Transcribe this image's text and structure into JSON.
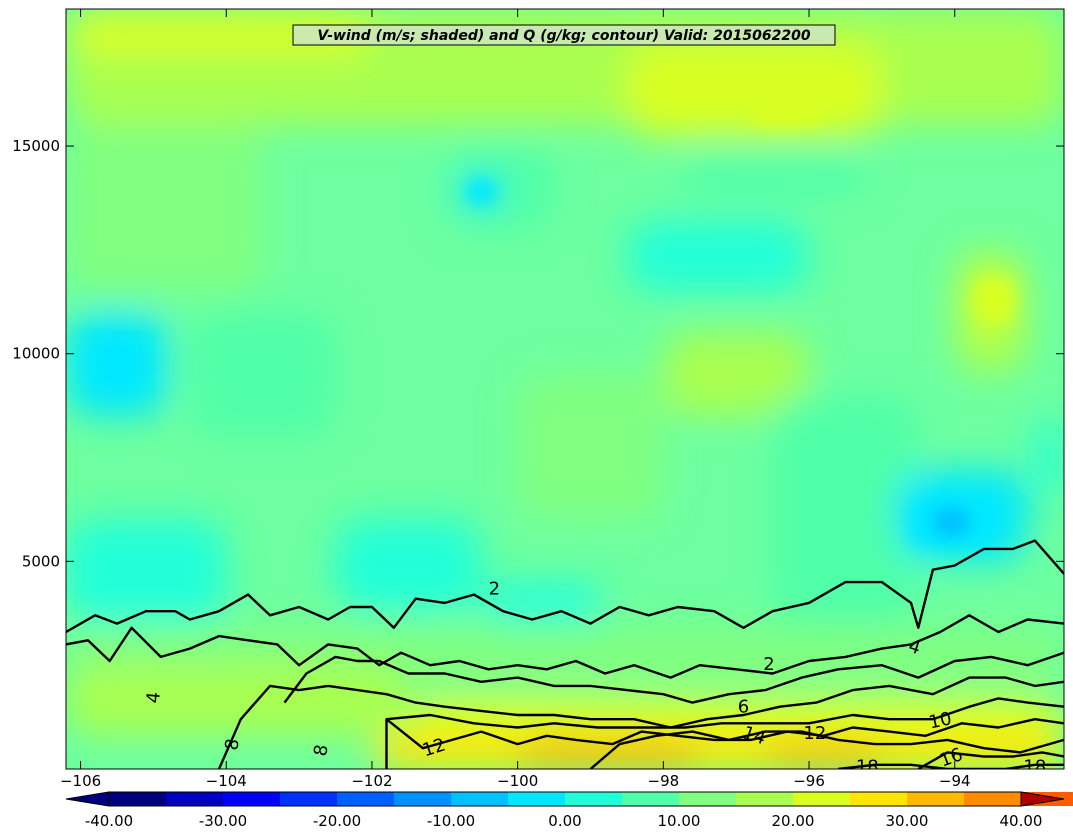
{
  "chart_data": {
    "type": "heatmap",
    "title": "V-wind (m/s; shaded) and Q (g/kg; contour) Valid: 2015062200",
    "xlim": [
      -106.2,
      -92.5
    ],
    "ylim": [
      0,
      18300
    ],
    "x_ticks": [
      -106,
      -104,
      -102,
      -100,
      -98,
      -96,
      -94
    ],
    "x_tick_labels": [
      "−106",
      "−104",
      "−102",
      "−100",
      "−98",
      "−96",
      "−94"
    ],
    "y_ticks": [
      5000,
      10000,
      15000
    ],
    "y_tick_labels": [
      "5000",
      "10000",
      "15000"
    ],
    "grid": false,
    "colorbar": {
      "orientation": "horizontal",
      "min": -40,
      "max": 40,
      "step": 5,
      "tick_values": [
        -40,
        -30,
        -20,
        -10,
        0,
        10,
        20,
        30,
        40
      ],
      "tick_labels": [
        "-40.00",
        "-30.00",
        "-20.00",
        "-10.00",
        "0.00",
        "10.00",
        "20.00",
        "30.00",
        "40.00"
      ],
      "colors": [
        "#00007f",
        "#0000bf",
        "#0000ff",
        "#0030ff",
        "#0060ff",
        "#0090ff",
        "#00c0ff",
        "#00e8ff",
        "#20ffd8",
        "#50ffa8",
        "#80ff80",
        "#a8ff50",
        "#d8ff20",
        "#ffe600",
        "#ffb800",
        "#ff8a00",
        "#ff5c00",
        "#ff2e00",
        "#e80000",
        "#b00000"
      ],
      "extend": "both"
    },
    "shading_levels": [
      {
        "name": "v_neg_10",
        "color": "#00e8ff"
      },
      {
        "name": "v_neg_5",
        "color": "#20ffd8"
      },
      {
        "name": "v_neg_2",
        "color": "#50ffa8"
      },
      {
        "name": "v_0",
        "color": "#80ff80"
      },
      {
        "name": "v_pos_5",
        "color": "#a8ff50"
      },
      {
        "name": "v_pos_8",
        "color": "#d8ff20"
      },
      {
        "name": "v_pos_12",
        "color": "#ffe600"
      },
      {
        "name": "v_pos_15",
        "color": "#ffb800"
      }
    ],
    "contours": [
      {
        "level": 2,
        "points": [
          [
            -106.2,
            3300
          ],
          [
            -105.8,
            3700
          ],
          [
            -105.5,
            3500
          ],
          [
            -105.1,
            3800
          ],
          [
            -104.7,
            3800
          ],
          [
            -104.5,
            3600
          ],
          [
            -104.1,
            3800
          ],
          [
            -103.7,
            4200
          ],
          [
            -103.4,
            3700
          ],
          [
            -103.0,
            3900
          ],
          [
            -102.6,
            3600
          ],
          [
            -102.3,
            3900
          ],
          [
            -102.0,
            3900
          ],
          [
            -101.7,
            3400
          ],
          [
            -101.4,
            4100
          ],
          [
            -101.0,
            4000
          ],
          [
            -100.6,
            4200
          ],
          [
            -100.2,
            3800
          ],
          [
            -99.8,
            3600
          ],
          [
            -99.4,
            3800
          ],
          [
            -99.0,
            3500
          ],
          [
            -98.6,
            3900
          ],
          [
            -98.2,
            3700
          ],
          [
            -97.8,
            3900
          ],
          [
            -97.3,
            3800
          ],
          [
            -96.9,
            3400
          ],
          [
            -96.5,
            3800
          ],
          [
            -96.0,
            4000
          ],
          [
            -95.5,
            4500
          ],
          [
            -95.0,
            4500
          ],
          [
            -94.6,
            4000
          ],
          [
            -94.5,
            3400
          ],
          [
            -94.3,
            4800
          ],
          [
            -94.0,
            4900
          ],
          [
            -93.6,
            5300
          ],
          [
            -93.2,
            5300
          ],
          [
            -92.9,
            5500
          ],
          [
            -92.5,
            4700
          ]
        ]
      },
      {
        "level": 4,
        "points": [
          [
            -106.2,
            3000
          ],
          [
            -105.9,
            3100
          ],
          [
            -105.6,
            2600
          ],
          [
            -105.3,
            3400
          ],
          [
            -104.9,
            2700
          ],
          [
            -104.5,
            2900
          ],
          [
            -104.1,
            3200
          ],
          [
            -103.7,
            3100
          ],
          [
            -103.3,
            3000
          ],
          [
            -103.0,
            2500
          ],
          [
            -102.6,
            3000
          ],
          [
            -102.2,
            2900
          ],
          [
            -101.9,
            2500
          ],
          [
            -101.6,
            2800
          ],
          [
            -101.2,
            2500
          ],
          [
            -100.8,
            2600
          ],
          [
            -100.4,
            2400
          ],
          [
            -100.0,
            2500
          ],
          [
            -99.6,
            2400
          ],
          [
            -99.2,
            2600
          ],
          [
            -98.8,
            2300
          ],
          [
            -98.4,
            2500
          ],
          [
            -97.9,
            2200
          ],
          [
            -97.5,
            2500
          ],
          [
            -97.0,
            2400
          ],
          [
            -96.5,
            2300
          ],
          [
            -96.0,
            2600
          ],
          [
            -95.5,
            2700
          ],
          [
            -95.0,
            2900
          ],
          [
            -94.6,
            3000
          ],
          [
            -94.2,
            3300
          ],
          [
            -93.8,
            3700
          ],
          [
            -93.4,
            3300
          ],
          [
            -93.0,
            3600
          ],
          [
            -92.5,
            3500
          ]
        ]
      },
      {
        "level": 6,
        "points": [
          [
            -103.2,
            1600
          ],
          [
            -102.9,
            2300
          ],
          [
            -102.5,
            2700
          ],
          [
            -102.2,
            2600
          ],
          [
            -101.9,
            2600
          ],
          [
            -101.5,
            2300
          ],
          [
            -101.0,
            2300
          ],
          [
            -100.5,
            2100
          ],
          [
            -100.0,
            2200
          ],
          [
            -99.5,
            2000
          ],
          [
            -99.0,
            2000
          ],
          [
            -98.5,
            1900
          ],
          [
            -98.0,
            1800
          ],
          [
            -97.6,
            1600
          ],
          [
            -97.1,
            1800
          ],
          [
            -96.6,
            1900
          ],
          [
            -96.1,
            2200
          ],
          [
            -95.6,
            2400
          ],
          [
            -95.0,
            2500
          ],
          [
            -94.5,
            2200
          ],
          [
            -94.0,
            2600
          ],
          [
            -93.5,
            2700
          ],
          [
            -93.0,
            2500
          ],
          [
            -92.5,
            2800
          ]
        ]
      },
      {
        "level": 8,
        "points": [
          [
            -104.1,
            0
          ],
          [
            -103.8,
            1200
          ],
          [
            -103.4,
            2000
          ],
          [
            -103.0,
            1900
          ],
          [
            -102.6,
            2000
          ],
          [
            -102.2,
            1900
          ],
          [
            -101.8,
            1800
          ],
          [
            -101.4,
            1600
          ],
          [
            -101.0,
            1500
          ],
          [
            -100.5,
            1400
          ],
          [
            -100.0,
            1300
          ],
          [
            -99.5,
            1300
          ],
          [
            -99.0,
            1200
          ],
          [
            -98.4,
            1200
          ],
          [
            -97.9,
            1000
          ],
          [
            -97.4,
            1200
          ],
          [
            -96.9,
            1300
          ],
          [
            -96.4,
            1500
          ],
          [
            -95.9,
            1600
          ],
          [
            -95.4,
            1900
          ],
          [
            -94.9,
            2000
          ],
          [
            -94.3,
            1800
          ],
          [
            -93.8,
            2200
          ],
          [
            -93.3,
            2200
          ],
          [
            -92.9,
            2000
          ],
          [
            -92.5,
            2100
          ]
        ]
      },
      {
        "level": 10,
        "points": [
          [
            -101.8,
            1200
          ],
          [
            -101.2,
            1300
          ],
          [
            -100.6,
            1100
          ],
          [
            -100.0,
            1000
          ],
          [
            -99.5,
            1100
          ],
          [
            -98.9,
            1000
          ],
          [
            -98.3,
            1000
          ],
          [
            -97.7,
            1000
          ],
          [
            -97.2,
            1100
          ],
          [
            -96.6,
            1100
          ],
          [
            -96.0,
            1100
          ],
          [
            -95.4,
            1300
          ],
          [
            -94.9,
            1200
          ],
          [
            -94.3,
            1200
          ],
          [
            -93.8,
            1500
          ],
          [
            -93.4,
            1700
          ],
          [
            -93.0,
            1600
          ],
          [
            -92.5,
            1500
          ]
        ]
      },
      {
        "level": 12,
        "points": [
          [
            -101.8,
            0
          ],
          [
            -101.8,
            1200
          ],
          [
            -101.3,
            500
          ],
          [
            -100.9,
            700
          ],
          [
            -100.5,
            900
          ],
          [
            -100.0,
            600
          ],
          [
            -99.6,
            800
          ],
          [
            -99.2,
            700
          ],
          [
            -98.7,
            600
          ],
          [
            -98.3,
            900
          ],
          [
            -97.8,
            800
          ],
          [
            -97.3,
            700
          ],
          [
            -96.8,
            700
          ],
          [
            -96.3,
            900
          ],
          [
            -95.8,
            800
          ],
          [
            -95.4,
            1000
          ],
          [
            -94.9,
            900
          ],
          [
            -94.4,
            800
          ],
          [
            -93.9,
            1100
          ],
          [
            -93.4,
            1000
          ],
          [
            -92.9,
            1200
          ],
          [
            -92.5,
            1100
          ]
        ]
      },
      {
        "level": 14,
        "points": [
          [
            -99.0,
            0
          ],
          [
            -98.6,
            600
          ],
          [
            -98.1,
            800
          ],
          [
            -97.6,
            900
          ],
          [
            -97.1,
            700
          ],
          [
            -96.6,
            900
          ],
          [
            -96.1,
            900
          ],
          [
            -95.6,
            700
          ],
          [
            -95.1,
            600
          ],
          [
            -94.6,
            600
          ],
          [
            -94.1,
            700
          ],
          [
            -93.6,
            500
          ],
          [
            -93.1,
            400
          ],
          [
            -92.5,
            700
          ]
        ]
      },
      {
        "level": 16,
        "points": [
          [
            -94.5,
            0
          ],
          [
            -94.1,
            400
          ],
          [
            -93.6,
            300
          ],
          [
            -93.2,
            300
          ],
          [
            -92.8,
            400
          ],
          [
            -92.5,
            300
          ]
        ]
      },
      {
        "level": 18,
        "points": [
          [
            -95.6,
            0
          ],
          [
            -95.1,
            100
          ],
          [
            -94.6,
            100
          ],
          [
            -94.1,
            0
          ],
          [
            -93.3,
            0
          ],
          [
            -92.9,
            100
          ],
          [
            -92.5,
            100
          ]
        ]
      }
    ],
    "contour_labels": [
      {
        "text": "2",
        "x": -100.32,
        "y": 4350,
        "rotate": 0
      },
      {
        "text": "2",
        "x": -96.55,
        "y": 2530,
        "rotate": 0
      },
      {
        "text": "4",
        "x": -94.55,
        "y": 2940,
        "rotate": 18
      },
      {
        "text": "4",
        "x": -105.0,
        "y": 1720,
        "rotate": -85
      },
      {
        "text": "6",
        "x": -96.9,
        "y": 1510,
        "rotate": 0
      },
      {
        "text": "8",
        "x": -103.92,
        "y": 590,
        "rotate": -80
      },
      {
        "text": "8",
        "x": -102.7,
        "y": 450,
        "rotate": -80
      },
      {
        "text": "10",
        "x": -94.2,
        "y": 1170,
        "rotate": -12
      },
      {
        "text": "12",
        "x": -101.15,
        "y": 520,
        "rotate": -18
      },
      {
        "text": "12",
        "x": -95.92,
        "y": 870,
        "rotate": 0
      },
      {
        "text": "14",
        "x": -96.75,
        "y": 810,
        "rotate": 18
      },
      {
        "text": "16",
        "x": -94.05,
        "y": 280,
        "rotate": -20
      },
      {
        "text": "18",
        "x": -95.2,
        "y": 60,
        "rotate": 0
      },
      {
        "text": "18",
        "x": -92.9,
        "y": 60,
        "rotate": 0
      }
    ]
  }
}
